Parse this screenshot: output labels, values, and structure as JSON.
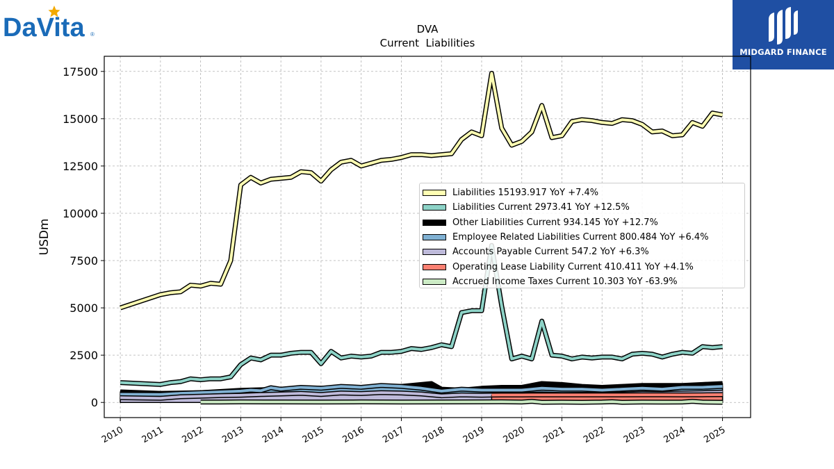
{
  "logo": {
    "company": "DaVita",
    "brand": "MIDGARD FINANCE"
  },
  "chart_data": {
    "type": "area",
    "title": "DVA",
    "subtitle": "Current  Liabilities",
    "ylabel": "USDm",
    "xlabel": "",
    "xlim": [
      2009.6,
      2025.7
    ],
    "ylim": [
      -800,
      18300
    ],
    "yticks": [
      0,
      2500,
      5000,
      7500,
      10000,
      12500,
      15000,
      17500
    ],
    "xticks": [
      "2010",
      "2011",
      "2012",
      "2013",
      "2014",
      "2015",
      "2016",
      "2017",
      "2018",
      "2019",
      "2020",
      "2021",
      "2022",
      "2023",
      "2024",
      "2025"
    ],
    "grid": true,
    "legend_position": "center-right",
    "series": [
      {
        "name": "Liabilities",
        "legend": "Liabilities  15193.917 YoY +7.4%",
        "color": "#ffffb3",
        "x": [
          2010.0,
          2011.0,
          2011.25,
          2011.5,
          2011.75,
          2012.0,
          2012.25,
          2012.5,
          2012.75,
          2013.0,
          2013.25,
          2013.5,
          2013.75,
          2014.0,
          2014.25,
          2014.5,
          2014.75,
          2015.0,
          2015.25,
          2015.5,
          2015.75,
          2016.0,
          2016.25,
          2016.5,
          2016.75,
          2017.0,
          2017.25,
          2017.5,
          2017.75,
          2018.0,
          2018.25,
          2018.5,
          2018.75,
          2019.0,
          2019.25,
          2019.5,
          2019.75,
          2020.0,
          2020.25,
          2020.5,
          2020.75,
          2021.0,
          2021.25,
          2021.5,
          2021.75,
          2022.0,
          2022.25,
          2022.5,
          2022.75,
          2023.0,
          2023.25,
          2023.5,
          2023.75,
          2024.0,
          2024.25,
          2024.5,
          2024.75,
          2025.0
        ],
        "values": [
          5000,
          5700,
          5800,
          5850,
          6200,
          6150,
          6300,
          6250,
          7500,
          11500,
          11900,
          11600,
          11800,
          11850,
          11900,
          12200,
          12150,
          11700,
          12300,
          12700,
          12800,
          12500,
          12650,
          12800,
          12850,
          12950,
          13100,
          13100,
          13050,
          13100,
          13150,
          13900,
          14300,
          14100,
          17400,
          14500,
          13600,
          13800,
          14300,
          15700,
          14000,
          14100,
          14850,
          14950,
          14900,
          14800,
          14750,
          14950,
          14900,
          14700,
          14300,
          14350,
          14100,
          14150,
          14800,
          14600,
          15300,
          15200
        ]
      },
      {
        "name": "Liabilities Current",
        "legend": "Liabilities Current  2973.41 YoY +12.5%",
        "color": "#8dd3c7",
        "x": [
          2010.0,
          2011.0,
          2011.25,
          2011.5,
          2011.75,
          2012.0,
          2012.25,
          2012.5,
          2012.75,
          2013.0,
          2013.25,
          2013.5,
          2013.75,
          2014.0,
          2014.25,
          2014.5,
          2014.75,
          2015.0,
          2015.25,
          2015.5,
          2015.75,
          2016.0,
          2016.25,
          2016.5,
          2016.75,
          2017.0,
          2017.25,
          2017.5,
          2017.75,
          2018.0,
          2018.25,
          2018.5,
          2018.75,
          2019.0,
          2019.25,
          2019.5,
          2019.75,
          2020.0,
          2020.25,
          2020.5,
          2020.75,
          2021.0,
          2021.25,
          2021.5,
          2021.75,
          2022.0,
          2022.25,
          2022.5,
          2022.75,
          2023.0,
          2023.25,
          2023.5,
          2023.75,
          2024.0,
          2024.25,
          2024.5,
          2024.75,
          2025.0
        ],
        "values": [
          1050,
          950,
          1050,
          1100,
          1250,
          1200,
          1250,
          1250,
          1350,
          2000,
          2350,
          2250,
          2500,
          2500,
          2600,
          2650,
          2650,
          2050,
          2700,
          2350,
          2450,
          2400,
          2450,
          2650,
          2650,
          2700,
          2850,
          2800,
          2900,
          3050,
          2950,
          4750,
          4850,
          4850,
          8300,
          5100,
          2300,
          2450,
          2300,
          4300,
          2500,
          2450,
          2300,
          2400,
          2350,
          2400,
          2400,
          2300,
          2550,
          2600,
          2550,
          2400,
          2550,
          2650,
          2600,
          2950,
          2900,
          2950
        ]
      },
      {
        "name": "Other Liabilities Current",
        "legend": "Other Liabilities Current  934.145 YoY +12.7%",
        "color": "#000000",
        "x": [
          2010.0,
          2011.0,
          2012.0,
          2013.0,
          2014.0,
          2015.0,
          2016.0,
          2017.0,
          2017.75,
          2018.0,
          2018.5,
          2019.0,
          2019.5,
          2020.0,
          2020.5,
          2021.0,
          2021.5,
          2022.0,
          2022.5,
          2023.0,
          2023.5,
          2024.0,
          2024.5,
          2025.0
        ],
        "values": [
          560,
          480,
          520,
          640,
          700,
          750,
          800,
          850,
          1000,
          700,
          650,
          750,
          800,
          800,
          1000,
          950,
          850,
          800,
          850,
          900,
          900,
          900,
          950,
          1000
        ]
      },
      {
        "name": "Employee Related Liabilities Current",
        "legend": "Employee Related Liabilities Current  800.484 YoY +6.4%",
        "color": "#80b1d3",
        "x": [
          2010.0,
          2011.0,
          2011.5,
          2012.0,
          2012.5,
          2013.0,
          2013.25,
          2013.5,
          2013.75,
          2014.0,
          2014.5,
          2015.0,
          2015.5,
          2016.0,
          2016.5,
          2017.0,
          2017.5,
          2018.0,
          2018.5,
          2019.0,
          2019.5,
          2020.0,
          2020.5,
          2021.0,
          2021.5,
          2022.0,
          2022.5,
          2023.0,
          2023.5,
          2024.0,
          2024.5,
          2025.0
        ],
        "values": [
          430,
          420,
          480,
          520,
          560,
          600,
          650,
          620,
          780,
          700,
          800,
          750,
          850,
          800,
          900,
          850,
          750,
          600,
          700,
          650,
          650,
          650,
          750,
          700,
          700,
          650,
          700,
          750,
          700,
          800,
          800,
          850
        ]
      },
      {
        "name": "Accounts Payable Current",
        "legend": "Accounts Payable Current  547.2 YoY +6.3%",
        "color": "#bebada",
        "x": [
          2010.0,
          2011.0,
          2011.5,
          2012.0,
          2012.5,
          2013.0,
          2013.5,
          2014.0,
          2014.5,
          2015.0,
          2015.5,
          2016.0,
          2016.5,
          2017.0,
          2017.5,
          2018.0,
          2018.5,
          2019.0,
          2019.5,
          2020.0,
          2020.5,
          2021.0,
          2021.5,
          2022.0,
          2022.5,
          2023.0,
          2023.5,
          2024.0,
          2024.5,
          2025.0
        ],
        "values": [
          250,
          220,
          300,
          330,
          360,
          380,
          420,
          450,
          480,
          420,
          500,
          470,
          520,
          500,
          450,
          350,
          400,
          380,
          400,
          420,
          450,
          420,
          430,
          420,
          450,
          480,
          470,
          500,
          520,
          547
        ]
      },
      {
        "name": "Operating Lease Liability Current",
        "legend": "Operating Lease Liability Current  410.411 YoY +4.1%",
        "color": "#fb8072",
        "x": [
          2019.25,
          2019.5,
          2020.0,
          2020.5,
          2021.0,
          2021.5,
          2022.0,
          2022.5,
          2023.0,
          2023.5,
          2024.0,
          2024.5,
          2025.0
        ],
        "values": [
          390,
          395,
          395,
          400,
          400,
          400,
          400,
          400,
          405,
          405,
          400,
          405,
          410
        ]
      },
      {
        "name": "Accrued Income Taxes Current",
        "legend": "Accrued Income Taxes Current  10.303 YoY -63.9%",
        "color": "#ccebc5",
        "x": [
          2012.0,
          2012.5,
          2013.0,
          2014.0,
          2015.0,
          2016.0,
          2017.0,
          2018.0,
          2019.0,
          2019.5,
          2020.0,
          2020.25,
          2020.5,
          2021.0,
          2021.5,
          2022.0,
          2022.25,
          2022.5,
          2023.0,
          2023.5,
          2024.0,
          2024.25,
          2024.5,
          2025.0
        ],
        "values": [
          20,
          20,
          30,
          25,
          20,
          30,
          20,
          25,
          30,
          35,
          20,
          60,
          10,
          15,
          10,
          20,
          40,
          10,
          20,
          15,
          20,
          60,
          20,
          10
        ]
      }
    ]
  }
}
